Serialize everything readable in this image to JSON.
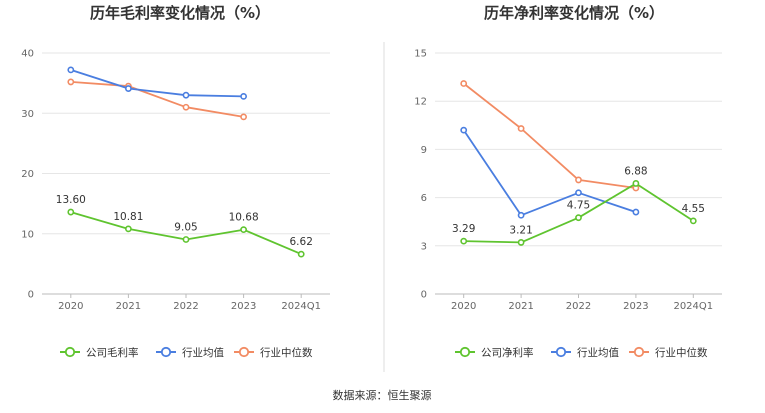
{
  "source_label": "数据来源：恒生聚源",
  "colors": {
    "company": "#5fc42f",
    "industry_avg": "#4a7ee0",
    "industry_median": "#f28b63",
    "grid": "#e6e6e6",
    "axis": "#bbbbbb",
    "divider": "#dddddd"
  },
  "chart_data": [
    {
      "type": "line",
      "title": "历年毛利率变化情况（%）",
      "categories": [
        "2020",
        "2021",
        "2022",
        "2023",
        "2024Q1"
      ],
      "ylim": [
        0,
        40
      ],
      "yticks": [
        0,
        10,
        20,
        30,
        40
      ],
      "series": [
        {
          "key": "company",
          "name": "公司毛利率",
          "values": [
            13.6,
            10.81,
            9.05,
            10.68,
            6.62
          ],
          "labels": [
            "13.60",
            "10.81",
            "9.05",
            "10.68",
            "6.62"
          ]
        },
        {
          "key": "industry_avg",
          "name": "行业均值",
          "values": [
            37.2,
            34.1,
            33.0,
            32.8,
            null
          ]
        },
        {
          "key": "industry_median",
          "name": "行业中位数",
          "values": [
            35.2,
            34.5,
            31.0,
            29.4,
            null
          ]
        }
      ]
    },
    {
      "type": "line",
      "title": "历年净利率变化情况（%）",
      "categories": [
        "2020",
        "2021",
        "2022",
        "2023",
        "2024Q1"
      ],
      "ylim": [
        0,
        15
      ],
      "yticks": [
        0,
        3,
        6,
        9,
        12,
        15
      ],
      "series": [
        {
          "key": "company",
          "name": "公司净利率",
          "values": [
            3.29,
            3.21,
            4.75,
            6.88,
            4.55
          ],
          "labels": [
            "3.29",
            "3.21",
            "4.75",
            "6.88",
            "4.55"
          ]
        },
        {
          "key": "industry_avg",
          "name": "行业均值",
          "values": [
            10.2,
            4.9,
            6.3,
            5.1,
            null
          ]
        },
        {
          "key": "industry_median",
          "name": "行业中位数",
          "values": [
            13.1,
            10.3,
            7.1,
            6.6,
            null
          ]
        }
      ]
    }
  ]
}
